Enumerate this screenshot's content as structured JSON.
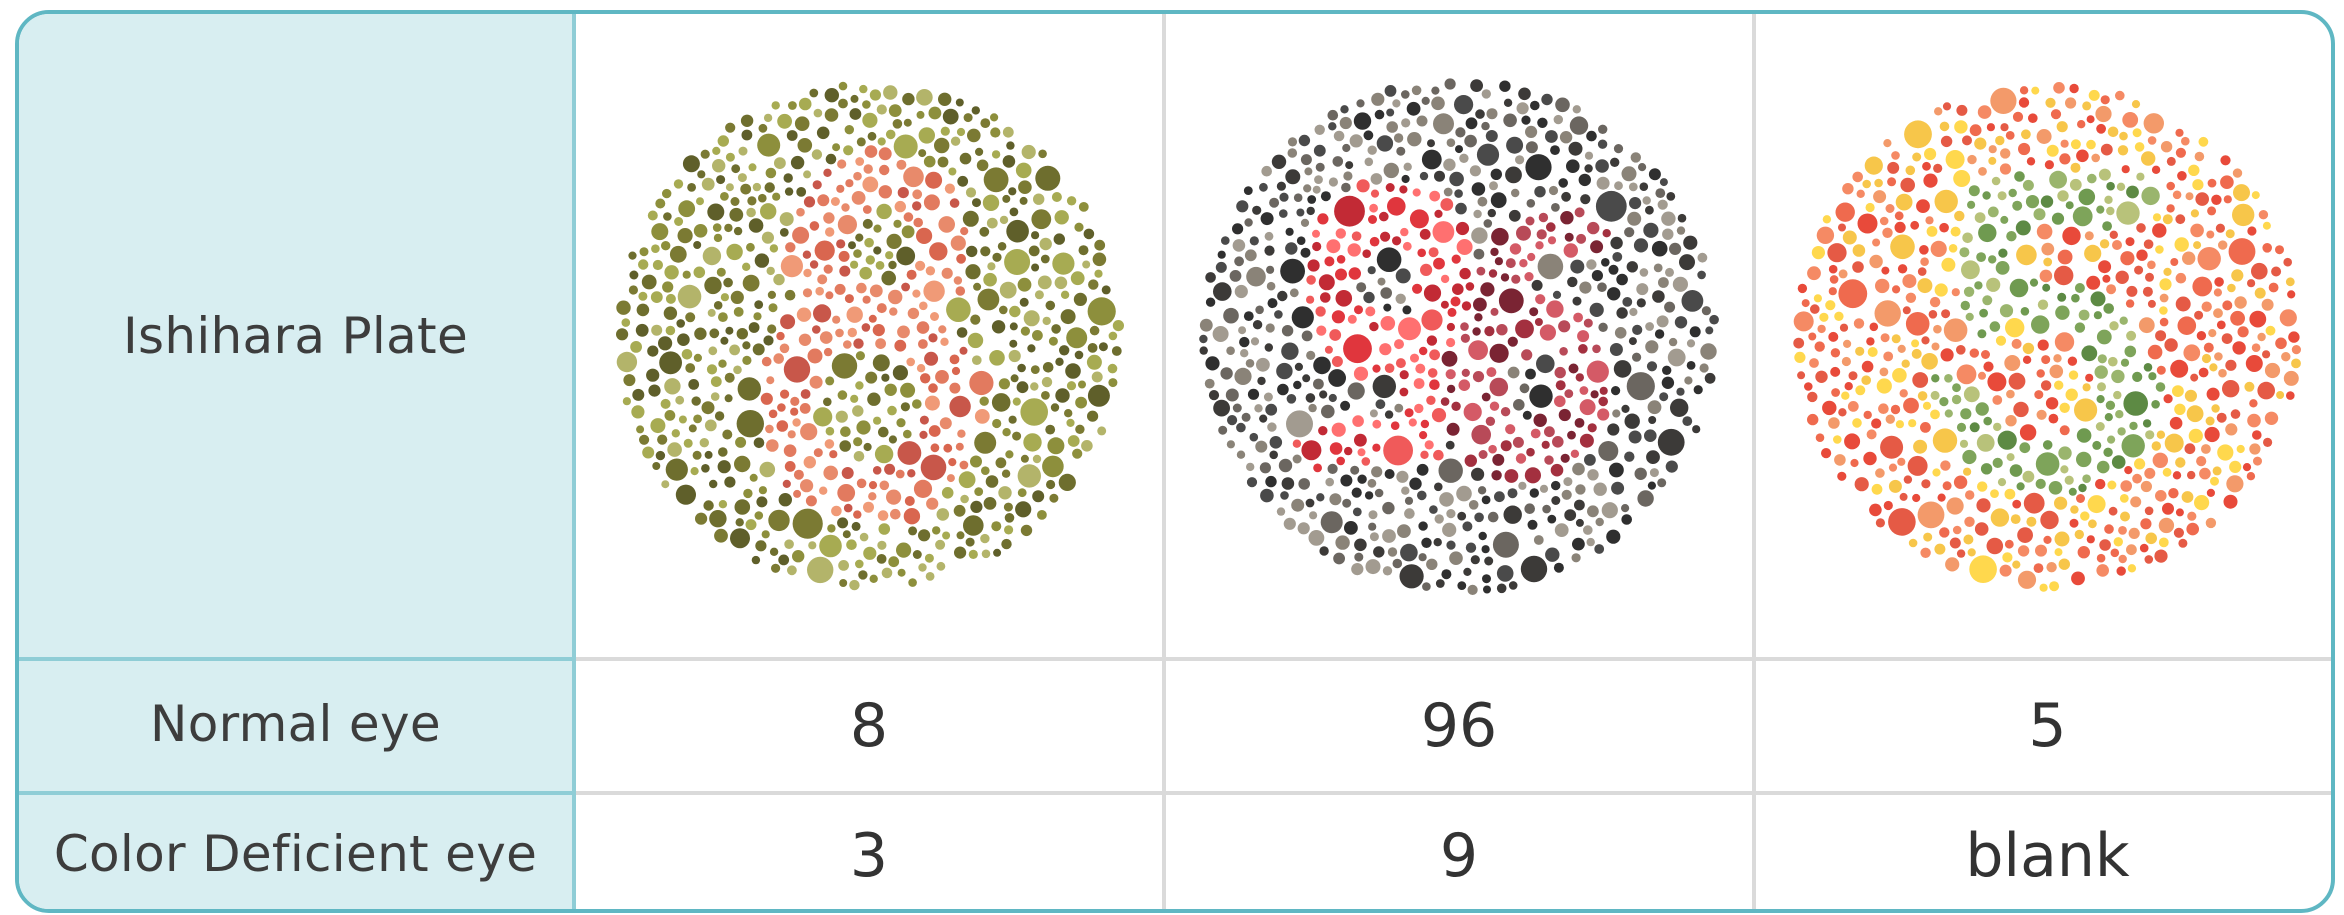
{
  "row_headers": [
    "Ishihara Plate",
    "Normal eye",
    "Color Deficient eye"
  ],
  "plates": [
    {
      "normal": "8",
      "deficient": "3",
      "colors": {
        "background": [
          "#6e6e2e",
          "#8d8f3c",
          "#a7ab52",
          "#5f5f2a",
          "#b3b46a",
          "#7b7a33"
        ],
        "figure": [
          "#e88a6b",
          "#d9664f",
          "#f09a77",
          "#c8574a",
          "#e27a5f"
        ]
      }
    },
    {
      "normal": "96",
      "deficient": "9",
      "colors": {
        "background": [
          "#2f2f2f",
          "#4a4a4a",
          "#8a8378",
          "#6b6660",
          "#a29b90",
          "#3c3a38"
        ],
        "figure": [
          "#e0363d",
          "#f05a5a",
          "#c22a35",
          "#ff7070"
        ],
        "figure_alt": [
          "#a3303f",
          "#7a2433",
          "#d45a66",
          "#b84a58"
        ]
      }
    },
    {
      "normal": "5",
      "deficient": "blank",
      "colors": {
        "background": [
          "#ef6a4e",
          "#f58a64",
          "#e84a3a",
          "#f7c64a",
          "#ffd84d",
          "#f39a6a",
          "#e55a45"
        ],
        "figure": [
          "#7ea45a",
          "#5d8a44",
          "#9ab56d",
          "#6f9a50",
          "#b8c27a"
        ]
      }
    }
  ],
  "table_colors": {
    "border": "#5fb7c3",
    "header_fill": "#d8eef1",
    "grid": "#dadada"
  }
}
